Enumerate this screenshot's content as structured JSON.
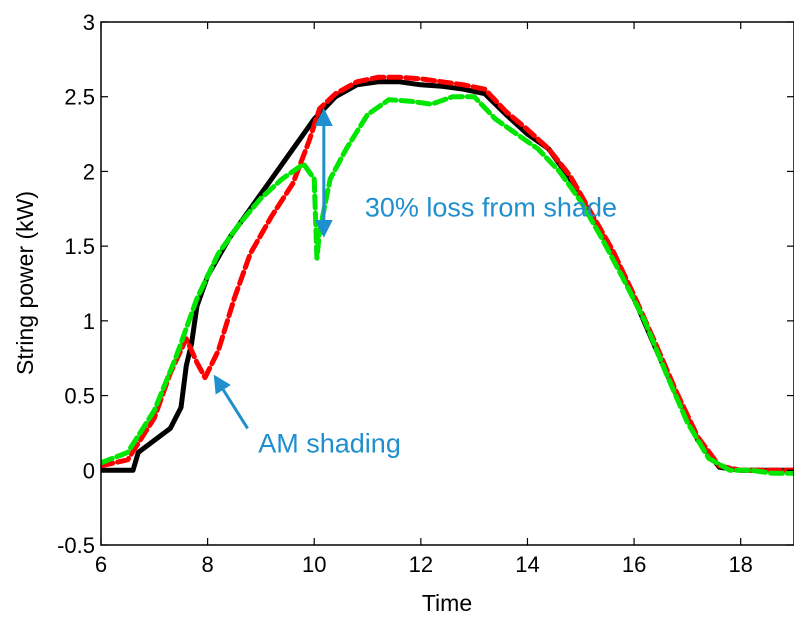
{
  "chart_data": {
    "type": "line",
    "xlabel": "Time",
    "ylabel": "String power (kW)",
    "xlim": [
      6,
      19
    ],
    "ylim": [
      -0.5,
      3
    ],
    "xticks": [
      6,
      8,
      10,
      12,
      14,
      16,
      18
    ],
    "yticks": [
      -0.5,
      0,
      0.5,
      1,
      1.5,
      2,
      2.5,
      3
    ],
    "grid": false,
    "legend": "none",
    "series": [
      {
        "color": "#000000",
        "style": "solid",
        "x": [
          6.0,
          6.6,
          6.7,
          7.0,
          7.3,
          7.5,
          7.6,
          7.7,
          7.8,
          8.0,
          8.4,
          8.8,
          9.2,
          9.6,
          10.0,
          10.4,
          10.8,
          11.2,
          11.6,
          12.0,
          12.4,
          12.8,
          13.2,
          13.6,
          14.0,
          14.4,
          14.8,
          15.2,
          15.6,
          16.0,
          16.4,
          16.8,
          17.2,
          17.6,
          18.0,
          18.5,
          19.0
        ],
        "y": [
          0.0,
          0.0,
          0.12,
          0.2,
          0.28,
          0.42,
          0.7,
          0.85,
          1.1,
          1.3,
          1.55,
          1.75,
          1.95,
          2.15,
          2.35,
          2.5,
          2.58,
          2.6,
          2.6,
          2.58,
          2.57,
          2.55,
          2.52,
          2.38,
          2.25,
          2.15,
          1.95,
          1.7,
          1.45,
          1.15,
          0.82,
          0.5,
          0.2,
          0.02,
          0.0,
          0.0,
          0.0
        ]
      },
      {
        "color": "#ff0000",
        "style": "dashed",
        "x": [
          6.0,
          6.5,
          7.0,
          7.3,
          7.6,
          7.8,
          7.95,
          8.2,
          8.5,
          8.8,
          9.2,
          9.6,
          9.9,
          10.1,
          10.4,
          10.8,
          11.2,
          11.6,
          12.0,
          12.4,
          12.8,
          13.2,
          13.6,
          14.0,
          14.4,
          14.8,
          15.2,
          15.6,
          16.0,
          16.4,
          16.8,
          17.2,
          17.6,
          18.0,
          18.5,
          19.0
        ],
        "y": [
          0.03,
          0.07,
          0.35,
          0.65,
          0.88,
          0.72,
          0.62,
          0.8,
          1.15,
          1.45,
          1.7,
          1.92,
          2.2,
          2.42,
          2.52,
          2.6,
          2.63,
          2.63,
          2.62,
          2.6,
          2.58,
          2.55,
          2.4,
          2.28,
          2.15,
          1.97,
          1.72,
          1.47,
          1.17,
          0.85,
          0.52,
          0.22,
          0.03,
          0.0,
          0.0,
          0.0
        ]
      },
      {
        "color": "#00e600",
        "style": "dashed",
        "x": [
          6.0,
          6.5,
          7.0,
          7.4,
          7.8,
          8.2,
          8.6,
          9.0,
          9.4,
          9.8,
          10.0,
          10.05,
          10.1,
          10.3,
          10.6,
          11.0,
          11.4,
          11.8,
          12.2,
          12.6,
          13.0,
          13.4,
          13.8,
          14.2,
          14.6,
          15.0,
          15.4,
          15.8,
          16.2,
          16.6,
          17.0,
          17.4,
          17.8,
          18.2,
          18.6,
          19.0
        ],
        "y": [
          0.05,
          0.12,
          0.4,
          0.75,
          1.15,
          1.45,
          1.65,
          1.82,
          1.95,
          2.05,
          1.95,
          1.42,
          1.6,
          1.95,
          2.15,
          2.38,
          2.48,
          2.47,
          2.45,
          2.5,
          2.5,
          2.35,
          2.25,
          2.15,
          2.0,
          1.8,
          1.55,
          1.28,
          1.0,
          0.65,
          0.32,
          0.08,
          0.0,
          0.0,
          -0.02,
          -0.02
        ]
      }
    ],
    "annotations": [
      {
        "text": "30% loss from shade",
        "color": "#1f8fce",
        "x": 10.95,
        "y": 1.7,
        "arrow": {
          "type": "double",
          "x": 10.18,
          "y1": 2.4,
          "y2": 1.58
        }
      },
      {
        "text": "AM shading",
        "color": "#1f8fce",
        "x": 8.95,
        "y": 0.12,
        "arrow": {
          "type": "single",
          "from_x": 8.75,
          "from_y": 0.28,
          "to_x": 8.15,
          "to_y": 0.62
        }
      }
    ]
  }
}
